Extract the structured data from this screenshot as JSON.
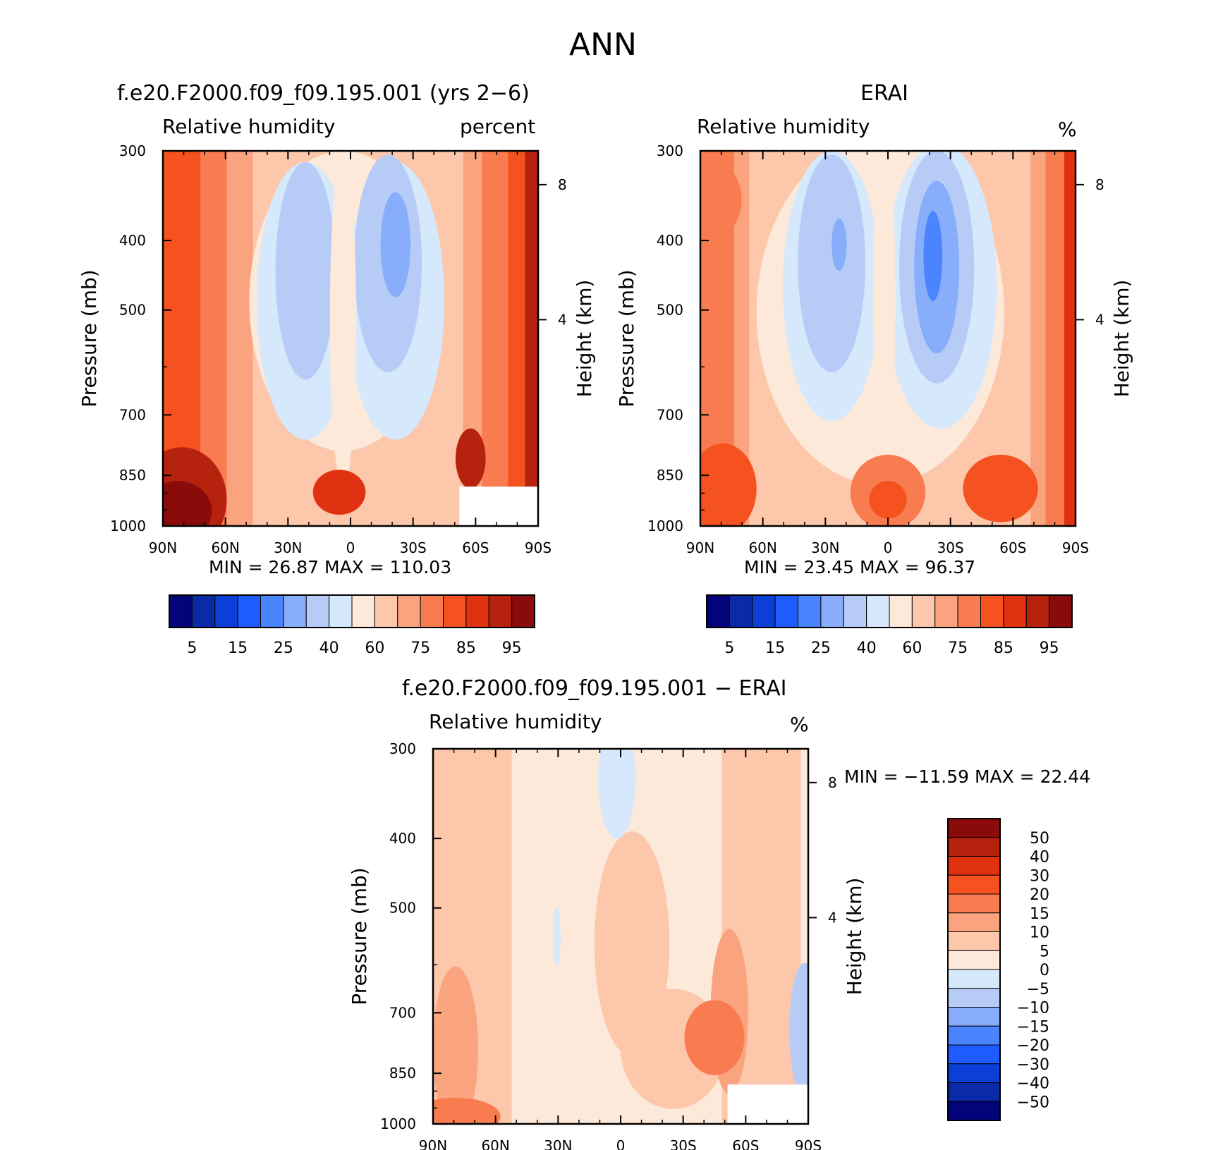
{
  "figure": {
    "title": "ANN"
  },
  "panels": [
    {
      "id": "model",
      "title": "f.e20.F2000.f09_f09.195.001 (yrs 2−6)",
      "left_label": "Relative humidity",
      "right_label": "percent",
      "stats": "MIN =   26.87   MAX = 110.03"
    },
    {
      "id": "obs",
      "title": "ERAI",
      "left_label": "Relative humidity",
      "right_label": "%",
      "stats": "MIN =   23.45   MAX =   96.37"
    },
    {
      "id": "diff",
      "title": "f.e20.F2000.f09_f09.195.001 − ERAI",
      "left_label": "Relative humidity",
      "right_label": "%",
      "stats": "MIN = −11.59   MAX =   22.44"
    }
  ],
  "axes": {
    "ylabel": "Pressure (mb)",
    "ylabel_right": "Height (km)",
    "pressure_ticks": [
      "300",
      "400",
      "500",
      "700",
      "850",
      "1000"
    ],
    "height_ticks": [
      "8",
      "4"
    ],
    "lat_ticks": [
      "90N",
      "60N",
      "30N",
      "0",
      "30S",
      "60S",
      "90S"
    ]
  },
  "colorbars": {
    "absolute": {
      "labels": [
        "5",
        "15",
        "25",
        "40",
        "60",
        "75",
        "85",
        "95"
      ],
      "colors": [
        "#04047a",
        "#0a2aa8",
        "#0b3fd8",
        "#1f5cff",
        "#4a84ff",
        "#87adfb",
        "#b6ccf7",
        "#d6e8fb",
        "#fde9d9",
        "#fcc7aa",
        "#faa47f",
        "#f87c50",
        "#f5521f",
        "#e03210",
        "#b5220d",
        "#8b0a0a"
      ]
    },
    "difference": {
      "labels": [
        "50",
        "40",
        "30",
        "20",
        "15",
        "10",
        "5",
        "0",
        "−5",
        "−10",
        "−15",
        "−20",
        "−30",
        "−40",
        "−50"
      ],
      "colors": [
        "#8b0a0a",
        "#b5220d",
        "#e03210",
        "#f5521f",
        "#f87c50",
        "#faa47f",
        "#fcc7aa",
        "#fde9d9",
        "#d6e8fb",
        "#b6ccf7",
        "#87adfb",
        "#4a84ff",
        "#1f5cff",
        "#0b3fd8",
        "#0a2aa8",
        "#04047a"
      ]
    }
  },
  "chart_data": [
    {
      "type": "heatmap",
      "title": "f.e20.F2000.f09_f09.195.001 (yrs 2−6)",
      "variable": "Relative humidity",
      "units": "percent",
      "x": [
        "90N",
        "60N",
        "30N",
        "0",
        "30S",
        "60S",
        "90S"
      ],
      "y": [
        300,
        400,
        500,
        700,
        850,
        1000
      ],
      "min": 26.87,
      "max": 110.03
    },
    {
      "type": "heatmap",
      "title": "ERAI",
      "variable": "Relative humidity",
      "units": "%",
      "x": [
        "90N",
        "60N",
        "30N",
        "0",
        "30S",
        "60S",
        "90S"
      ],
      "y": [
        300,
        400,
        500,
        700,
        850,
        1000
      ],
      "min": 23.45,
      "max": 96.37
    },
    {
      "type": "heatmap",
      "title": "f.e20.F2000.f09_f09.195.001 − ERAI",
      "variable": "Relative humidity",
      "units": "%",
      "x": [
        "90N",
        "60N",
        "30N",
        "0",
        "30S",
        "60S",
        "90S"
      ],
      "y": [
        300,
        400,
        500,
        700,
        850,
        1000
      ],
      "min": -11.59,
      "max": 22.44
    }
  ]
}
